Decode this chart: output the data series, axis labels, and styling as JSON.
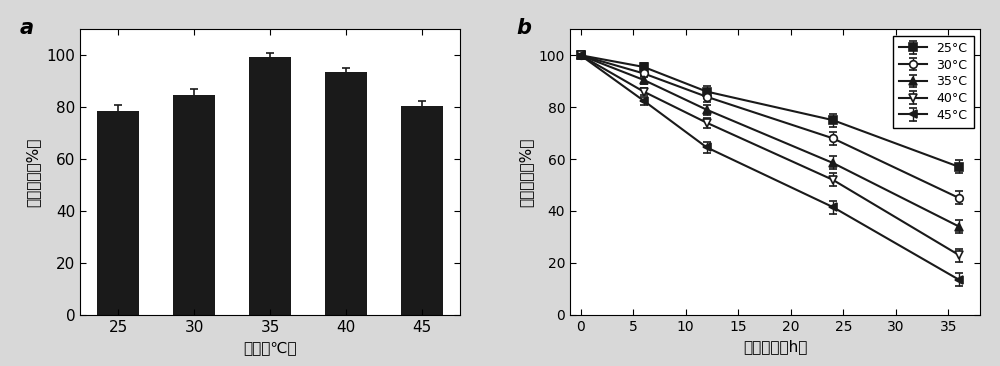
{
  "panel_a": {
    "categories": [
      "25",
      "30",
      "35",
      "40",
      "45"
    ],
    "values": [
      78.5,
      84.5,
      99.5,
      93.5,
      80.5
    ],
    "errors": [
      2.5,
      2.5,
      1.5,
      1.5,
      2.0
    ],
    "bar_color": "#1a1a1a",
    "xlabel": "温度（℃）",
    "ylabel": "相对酶活（%）",
    "label": "a",
    "ylim": [
      0,
      110
    ],
    "yticks": [
      0,
      20,
      40,
      60,
      80,
      100
    ]
  },
  "panel_b": {
    "xdata": [
      0,
      6,
      12,
      24,
      36
    ],
    "series": {
      "25°C": {
        "values": [
          100,
          95.5,
          86.0,
          75.0,
          57.0
        ],
        "errors": [
          0,
          1.5,
          2.0,
          2.5,
          2.5
        ],
        "marker": "s",
        "fillstyle": "full"
      },
      "30°C": {
        "values": [
          100,
          93.0,
          84.0,
          68.0,
          45.0
        ],
        "errors": [
          0,
          1.5,
          2.0,
          2.5,
          2.5
        ],
        "marker": "o",
        "fillstyle": "none"
      },
      "35°C": {
        "values": [
          100,
          90.5,
          79.0,
          58.5,
          34.0
        ],
        "errors": [
          0,
          1.5,
          2.0,
          2.5,
          2.5
        ],
        "marker": "^",
        "fillstyle": "full"
      },
      "40°C": {
        "values": [
          100,
          86.0,
          74.0,
          52.0,
          23.0
        ],
        "errors": [
          0,
          1.5,
          2.0,
          2.5,
          2.5
        ],
        "marker": "v",
        "fillstyle": "none"
      },
      "45°C": {
        "values": [
          100,
          82.5,
          64.5,
          41.5,
          13.5
        ],
        "errors": [
          0,
          1.5,
          2.0,
          2.5,
          2.5
        ],
        "marker": "<",
        "fillstyle": "full"
      }
    },
    "xlabel": "孵育时间（h）",
    "ylabel": "相对酶活（%）",
    "label": "b",
    "ylim": [
      0,
      110
    ],
    "yticks": [
      0,
      20,
      40,
      60,
      80,
      100
    ],
    "xlim": [
      -1,
      38
    ],
    "xticks": [
      0,
      5,
      10,
      15,
      20,
      25,
      30,
      35
    ]
  },
  "line_color": "#1a1a1a",
  "background_color": "#ffffff",
  "figure_bg": "#d8d8d8"
}
